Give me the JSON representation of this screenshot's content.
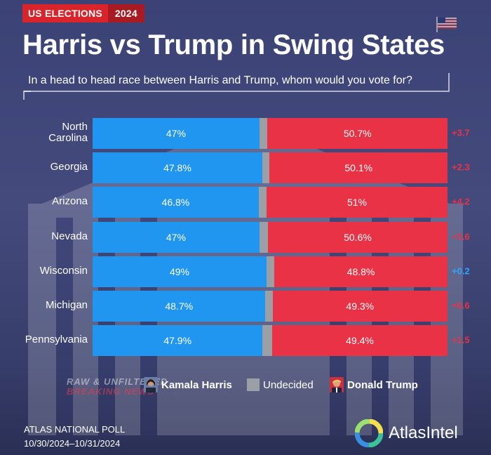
{
  "header": {
    "tag": "US ELECTIONS",
    "year": "2024",
    "title": "Harris vs Trump in Swing States",
    "subtitle": "In a head to head race between Harris and Trump, whom would you vote for?"
  },
  "chart_data": {
    "type": "bar",
    "orientation": "horizontal",
    "stacked": true,
    "title": "Harris vs Trump in Swing States",
    "subtitle": "In a head to head race between Harris and Trump, whom would you vote for?",
    "categories": [
      "North Carolina",
      "Georgia",
      "Arizona",
      "Nevada",
      "Wisconsin",
      "Michigan",
      "Pennsylvania"
    ],
    "category_labels": [
      [
        "North",
        "Carolina"
      ],
      [
        "Georgia"
      ],
      [
        "Arizona"
      ],
      [
        "Nevada"
      ],
      [
        "Wisconsin"
      ],
      [
        "Michigan"
      ],
      [
        "Pennsylvania"
      ]
    ],
    "series": [
      {
        "name": "Kamala Harris",
        "color": "#2196f0",
        "values": [
          47,
          47.8,
          46.8,
          47,
          49,
          48.7,
          47.9
        ],
        "labels": [
          "47%",
          "47.8%",
          "46.8%",
          "47%",
          "49%",
          "48.7%",
          "47.9%"
        ]
      },
      {
        "name": "Undecided",
        "color": "#9aa0a6",
        "values": [
          2.3,
          2.1,
          2.2,
          2.4,
          2.2,
          2.0,
          2.7
        ]
      },
      {
        "name": "Donald Trump",
        "color": "#ea3246",
        "values": [
          50.7,
          50.1,
          51,
          50.6,
          48.8,
          49.3,
          49.4
        ],
        "labels": [
          "50.7%",
          "50.1%",
          "51%",
          "50.6%",
          "48.8%",
          "49.3%",
          "49.4%"
        ]
      }
    ],
    "margins": [
      {
        "text": "+3.7",
        "leader": "Trump",
        "color": "#ea3246"
      },
      {
        "text": "+2.3",
        "leader": "Trump",
        "color": "#ea3246"
      },
      {
        "text": "+4.2",
        "leader": "Trump",
        "color": "#ea3246"
      },
      {
        "text": "+3.6",
        "leader": "Trump",
        "color": "#ea3246"
      },
      {
        "text": "+0.2",
        "leader": "Harris",
        "color": "#2ea6ff"
      },
      {
        "text": "+0.6",
        "leader": "Trump",
        "color": "#ea3246"
      },
      {
        "text": "+1.5",
        "leader": "Trump",
        "color": "#ea3246"
      }
    ],
    "xlim": [
      0,
      100
    ],
    "grid": false,
    "legend_position": "bottom"
  },
  "legend": {
    "harris": "Kamala Harris",
    "undecided": "Undecided",
    "trump": "Donald Trump"
  },
  "watermark": {
    "line1": "RAW & UNFILTERED",
    "line2": "BREAKING NEWS"
  },
  "footer": {
    "poll": "ATLAS NATIONAL POLL",
    "dates": "10/30/2024–10/31/2024"
  },
  "logo": {
    "text": "AtlasIntel"
  },
  "colors": {
    "background": "#3f4577",
    "harris": "#2196f0",
    "trump": "#ea3246",
    "undecided": "#9aa0a6",
    "badge_red": "#d9242b"
  }
}
